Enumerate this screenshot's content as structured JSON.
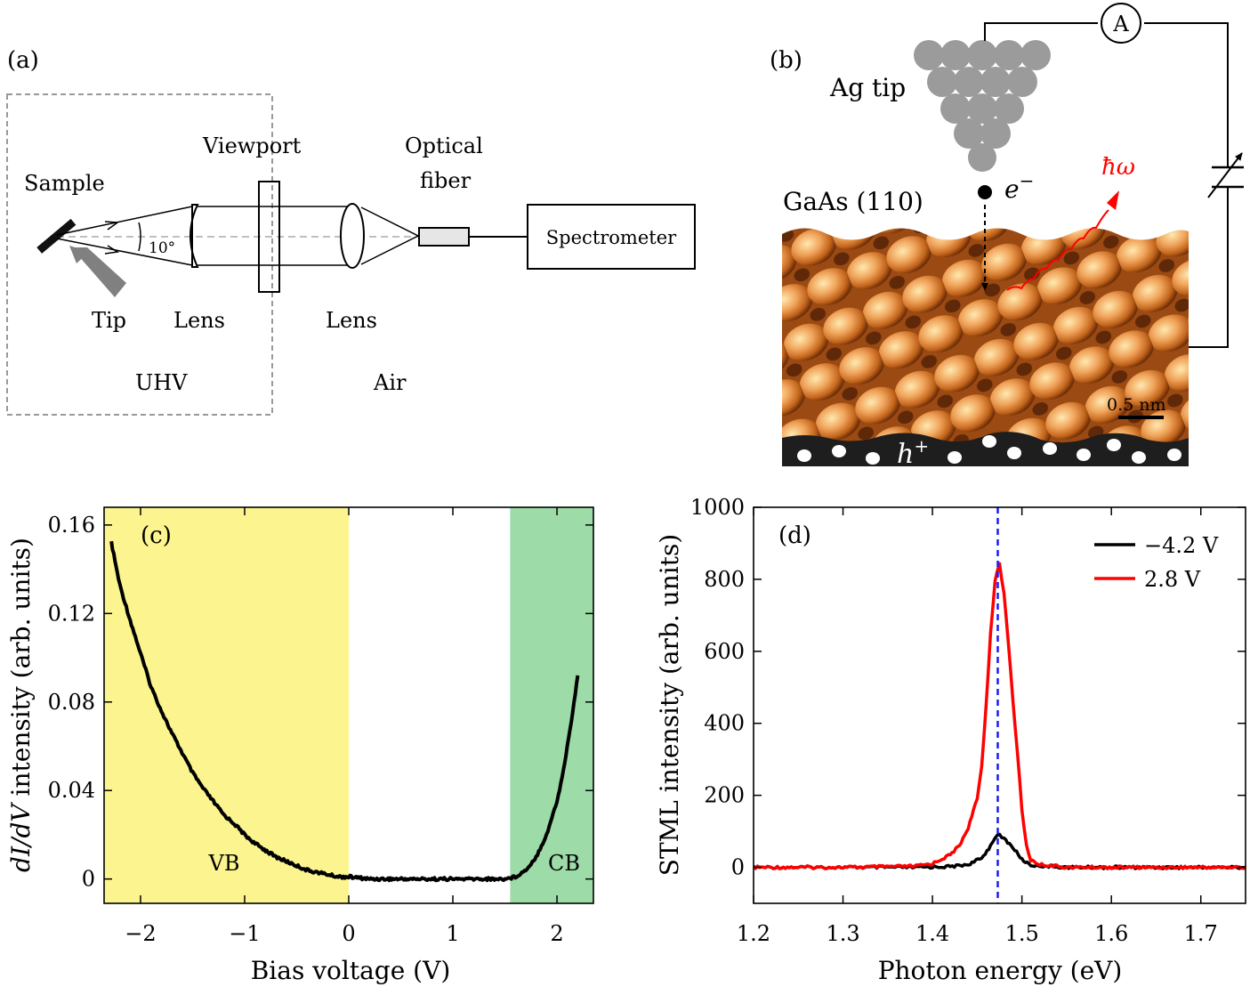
{
  "panel_a": {
    "letter": "(a)",
    "sample": "Sample",
    "tip": "Tip",
    "lens_left": "Lens",
    "viewport": "Viewport",
    "lens_right": "Lens",
    "fiber_line1": "Optical",
    "fiber_line2": "fiber",
    "spectrometer": "Spectrometer",
    "angle": "10°",
    "uhv": "UHV",
    "air": "Air"
  },
  "panel_b": {
    "letter": "(b)",
    "tip_label": "Ag tip",
    "ammeter": "A",
    "surface_label": "GaAs (110)",
    "electron": "e",
    "electron_sup": "−",
    "photon": "ħω",
    "scalebar": "0.5 nm",
    "hole": "h",
    "hole_sup": "+"
  },
  "chart_data": [
    {
      "type": "line",
      "panel": "(c)",
      "xlabel": "Bias voltage (V)",
      "ylabel_italic": "dI/dV",
      "ylabel_rest": " intensity (arb. units)",
      "xlim": [
        -2.35,
        2.35
      ],
      "ylim": [
        -0.011,
        0.168
      ],
      "xticks": [
        -2,
        -1,
        0,
        1,
        2
      ],
      "xtick_labels": [
        "−2",
        "−1",
        "0",
        "1",
        "2"
      ],
      "yticks": [
        0,
        0.04,
        0.08,
        0.12,
        0.16
      ],
      "ytick_labels": [
        "0",
        "0.04",
        "0.08",
        "0.12",
        "0.16"
      ],
      "bands": [
        {
          "label": "VB",
          "x0": -2.35,
          "x1": 0.0,
          "color": "#fcf58f"
        },
        {
          "label": "CB",
          "x0": 1.55,
          "x1": 2.35,
          "color": "#9ddca8"
        }
      ],
      "series": [
        {
          "name": "dI/dV",
          "color": "#000000",
          "x": [
            -2.28,
            -2.2,
            -2.1,
            -2.0,
            -1.9,
            -1.8,
            -1.7,
            -1.6,
            -1.5,
            -1.4,
            -1.3,
            -1.2,
            -1.1,
            -1.0,
            -0.9,
            -0.8,
            -0.7,
            -0.6,
            -0.5,
            -0.4,
            -0.3,
            -0.2,
            -0.1,
            0.0,
            0.2,
            0.4,
            0.6,
            0.8,
            1.0,
            1.2,
            1.4,
            1.5,
            1.6,
            1.7,
            1.8,
            1.9,
            2.0,
            2.05,
            2.1,
            2.15,
            2.2
          ],
          "y": [
            0.152,
            0.133,
            0.117,
            0.102,
            0.087,
            0.076,
            0.066,
            0.057,
            0.048,
            0.041,
            0.035,
            0.029,
            0.025,
            0.02,
            0.016,
            0.013,
            0.01,
            0.008,
            0.006,
            0.004,
            0.003,
            0.002,
            0.001,
            0.001,
            0.0,
            0.0,
            0.0,
            0.0,
            0.0,
            0.0,
            0.0,
            0.0,
            0.001,
            0.004,
            0.01,
            0.02,
            0.035,
            0.046,
            0.06,
            0.075,
            0.092
          ]
        }
      ]
    },
    {
      "type": "line",
      "panel": "(d)",
      "xlabel": "Photon energy (eV)",
      "ylabel": "STML intensity (arb. units)",
      "xlim": [
        1.2,
        1.75
      ],
      "ylim": [
        -100,
        1000
      ],
      "xticks": [
        1.2,
        1.3,
        1.4,
        1.5,
        1.6,
        1.7
      ],
      "xtick_labels": [
        "1.2",
        "1.3",
        "1.4",
        "1.5",
        "1.6",
        "1.7"
      ],
      "yticks": [
        0,
        200,
        400,
        600,
        800,
        1000
      ],
      "ytick_labels": [
        "0",
        "200",
        "400",
        "600",
        "800",
        "1000"
      ],
      "marker_x": 1.473,
      "series": [
        {
          "name": "−4.2 V",
          "color": "#000000",
          "x": [
            1.2,
            1.3,
            1.38,
            1.42,
            1.44,
            1.455,
            1.465,
            1.47,
            1.475,
            1.48,
            1.49,
            1.5,
            1.51,
            1.55,
            1.6,
            1.7,
            1.75
          ],
          "y": [
            0,
            0,
            0,
            2,
            8,
            25,
            60,
            85,
            88,
            80,
            55,
            22,
            6,
            0,
            0,
            0,
            0
          ]
        },
        {
          "name": "2.8 V",
          "color": "#ff0000",
          "x": [
            1.2,
            1.3,
            1.38,
            1.4,
            1.42,
            1.43,
            1.44,
            1.45,
            1.455,
            1.46,
            1.465,
            1.47,
            1.475,
            1.48,
            1.485,
            1.49,
            1.495,
            1.5,
            1.505,
            1.51,
            1.52,
            1.55,
            1.6,
            1.7,
            1.75
          ],
          "y": [
            0,
            0,
            3,
            10,
            35,
            60,
            110,
            190,
            280,
            450,
            650,
            800,
            840,
            760,
            620,
            460,
            320,
            160,
            60,
            20,
            8,
            0,
            0,
            0,
            0
          ]
        }
      ]
    }
  ]
}
